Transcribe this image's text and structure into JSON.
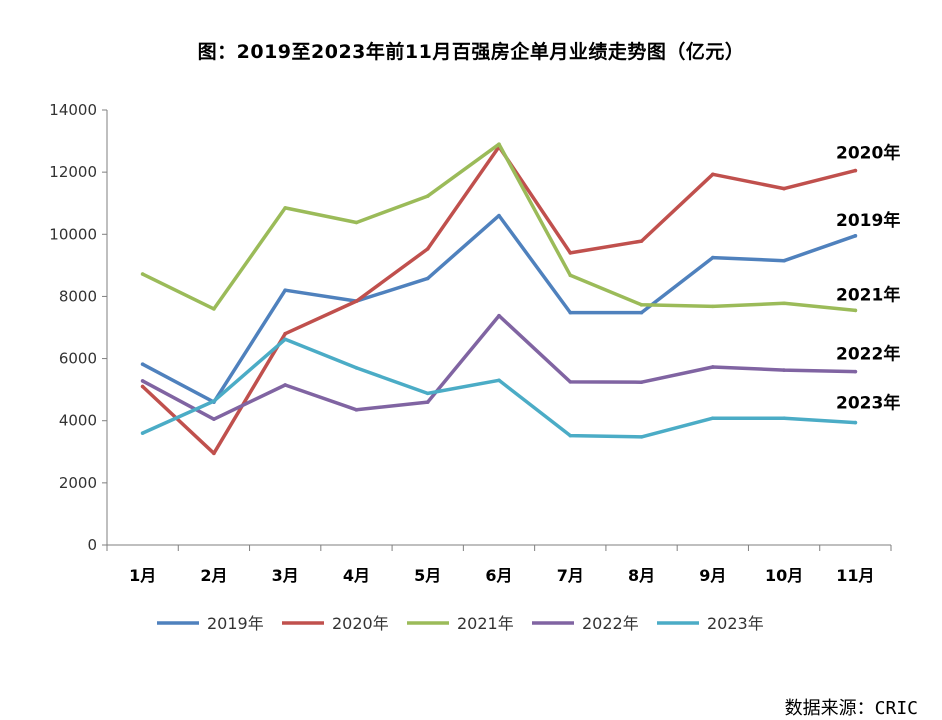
{
  "chart_data": {
    "type": "line",
    "title": "图：2019至2023年前11月百强房企单月业绩走势图（亿元）",
    "xlabel": "",
    "ylabel": "",
    "ylim": [
      0,
      14000
    ],
    "yticks": [
      0,
      2000,
      4000,
      6000,
      8000,
      10000,
      12000,
      14000
    ],
    "categories": [
      "1月",
      "2月",
      "3月",
      "4月",
      "5月",
      "6月",
      "7月",
      "8月",
      "9月",
      "10月",
      "11月"
    ],
    "legend_position": "bottom",
    "series": [
      {
        "name": "2019年",
        "color": "#4F81BD",
        "end_label": "2019年",
        "values": [
          5820,
          4600,
          8200,
          7850,
          8580,
          10600,
          7480,
          7480,
          9250,
          9150,
          9950
        ]
      },
      {
        "name": "2020年",
        "color": "#C0504D",
        "end_label": "2020年",
        "values": [
          5100,
          2950,
          6800,
          7850,
          9530,
          12820,
          9400,
          9780,
          11930,
          11470,
          12050
        ]
      },
      {
        "name": "2021年",
        "color": "#9BBB59",
        "end_label": "2021年",
        "values": [
          8720,
          7600,
          10850,
          10380,
          11230,
          12900,
          8680,
          7730,
          7680,
          7780,
          7550
        ]
      },
      {
        "name": "2022年",
        "color": "#8064A2",
        "end_label": "2022年",
        "values": [
          5280,
          4050,
          5150,
          4350,
          4600,
          7380,
          5250,
          5240,
          5730,
          5630,
          5580
        ]
      },
      {
        "name": "2023年",
        "color": "#4BACC6",
        "end_label": "2023年",
        "values": [
          3600,
          4630,
          6620,
          5700,
          4880,
          5300,
          3520,
          3480,
          4080,
          4080,
          3940
        ]
      }
    ]
  },
  "source": "数据来源：CRIC"
}
